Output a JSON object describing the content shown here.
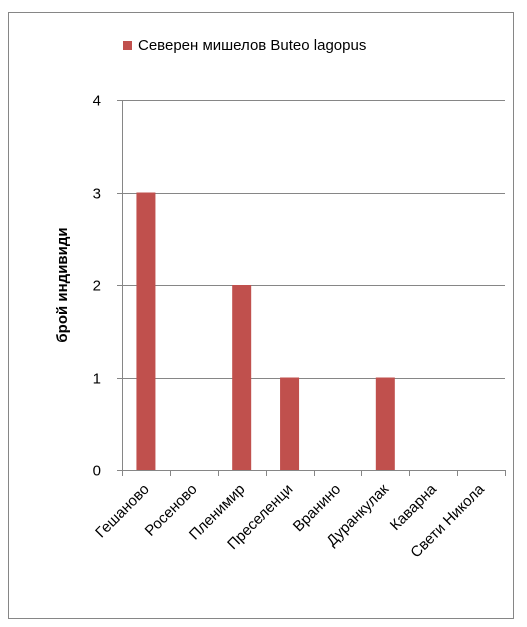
{
  "chart_data": {
    "type": "bar",
    "categories": [
      "Гешаново",
      "Росеново",
      "Пленимир",
      "Преселенци",
      "Вранино",
      "Дуранкулак",
      "Каварна",
      "Свети Никола"
    ],
    "series": [
      {
        "name": "Северен мишелов Buteo lagopus",
        "values": [
          3,
          0,
          2,
          1,
          0,
          1,
          0,
          0
        ]
      }
    ],
    "xlabel": "",
    "ylabel": "брой индивиди",
    "ylim": [
      0,
      4
    ],
    "yticks": [
      "0",
      "1",
      "2",
      "3",
      "4"
    ],
    "grid": true,
    "legend_position": "top",
    "colors": {
      "bar": "#c0504d",
      "grid": "#868686",
      "axis": "#868686",
      "frame": "#868686"
    }
  }
}
